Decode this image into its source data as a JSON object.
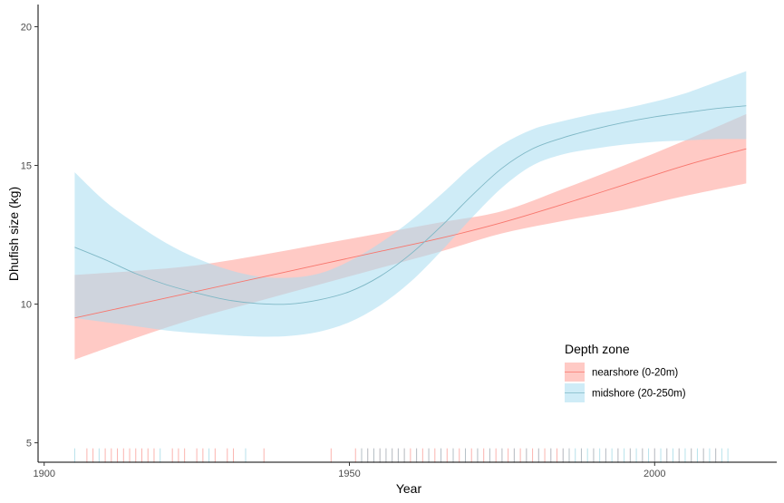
{
  "chart_data": {
    "type": "line",
    "xlabel": "Year",
    "ylabel": "Dhufish size (kg)",
    "xlim": [
      1899,
      2020
    ],
    "ylim": [
      4.3,
      20.8
    ],
    "xticks": [
      1900,
      1950,
      2000
    ],
    "yticks": [
      5,
      10,
      15,
      20
    ],
    "grid": false,
    "legend": {
      "title": "Depth zone",
      "placement": "bottom-right",
      "entries": [
        {
          "label": "nearshore (0-20m)",
          "color": "#F8766D"
        },
        {
          "label": "midshore (20-250m)",
          "color": "#00BFC4"
        }
      ]
    },
    "series": [
      {
        "name": "nearshore (0-20m)",
        "line_color": "#F8766D",
        "band_color": "#FF9E96",
        "x": [
          1905,
          1915,
          1925,
          1935,
          1945,
          1955,
          1965,
          1975,
          1985,
          1995,
          2005,
          2015
        ],
        "y": [
          9.5,
          9.98,
          10.46,
          10.94,
          11.42,
          11.9,
          12.38,
          12.94,
          13.6,
          14.3,
          15.0,
          15.6
        ],
        "lower": [
          8.0,
          8.78,
          9.5,
          10.1,
          10.7,
          11.3,
          11.9,
          12.55,
          13.0,
          13.4,
          13.9,
          14.35
        ],
        "upper": [
          11.05,
          11.2,
          11.4,
          11.75,
          12.15,
          12.55,
          12.95,
          13.35,
          14.15,
          15.0,
          15.9,
          16.85
        ]
      },
      {
        "name": "midshore (20-250m)",
        "line_color": "#7FB8C6",
        "band_color": "#A7DCF0",
        "x": [
          1905,
          1910,
          1915,
          1920,
          1925,
          1930,
          1935,
          1940,
          1945,
          1950,
          1955,
          1960,
          1965,
          1970,
          1975,
          1980,
          1985,
          1990,
          1995,
          2000,
          2005,
          2010,
          2015
        ],
        "y": [
          12.05,
          11.6,
          11.1,
          10.7,
          10.4,
          10.15,
          10.02,
          10.0,
          10.15,
          10.45,
          11.0,
          11.8,
          12.8,
          13.9,
          14.9,
          15.6,
          16.0,
          16.3,
          16.55,
          16.75,
          16.9,
          17.05,
          17.15
        ],
        "lower": [
          9.5,
          9.35,
          9.2,
          9.05,
          8.95,
          8.88,
          8.83,
          8.85,
          9.0,
          9.35,
          9.95,
          10.8,
          11.9,
          13.1,
          14.2,
          15.0,
          15.4,
          15.6,
          15.75,
          15.85,
          15.9,
          15.95,
          15.95
        ],
        "upper": [
          14.75,
          13.7,
          12.9,
          12.2,
          11.65,
          11.25,
          11.0,
          10.95,
          11.1,
          11.55,
          12.2,
          13.0,
          13.95,
          14.95,
          15.75,
          16.3,
          16.6,
          16.85,
          17.05,
          17.3,
          17.6,
          18.0,
          18.4
        ]
      }
    ],
    "rug": {
      "y_range": [
        4.28,
        4.8
      ],
      "nearshore_color": "#F8766D",
      "midshore_color": "#7CCBDB",
      "nearshore_years": [
        1907,
        1908,
        1910,
        1911,
        1912,
        1913,
        1914,
        1915,
        1916,
        1917,
        1918,
        1921,
        1922,
        1923,
        1925,
        1926,
        1928,
        1930,
        1931,
        1936,
        1947,
        1951,
        1952,
        1953,
        1954,
        1955,
        1956,
        1957,
        1958,
        1959,
        1960,
        1961,
        1962,
        1963,
        1964,
        1965,
        1966,
        1967,
        1968,
        1969,
        1970,
        1971,
        1972,
        1973,
        1974,
        1975,
        1976,
        1977,
        1978,
        1979,
        1980,
        1981,
        1982,
        1983,
        1984,
        1985,
        1986,
        1988,
        1990,
        1992,
        1994,
        1996,
        1998,
        2000,
        2002,
        2004,
        2006,
        2008,
        2010
      ],
      "midshore_years": [
        1905,
        1909,
        1919,
        1927,
        1933,
        1952,
        1953,
        1954,
        1955,
        1956,
        1957,
        1958,
        1959,
        1961,
        1963,
        1965,
        1967,
        1969,
        1971,
        1973,
        1975,
        1977,
        1979,
        1981,
        1983,
        1985,
        1986,
        1987,
        1988,
        1989,
        1990,
        1991,
        1992,
        1993,
        1994,
        1995,
        1996,
        1997,
        1998,
        1999,
        2000,
        2001,
        2002,
        2003,
        2004,
        2005,
        2006,
        2007,
        2008,
        2009,
        2010,
        2011,
        2012
      ]
    }
  }
}
